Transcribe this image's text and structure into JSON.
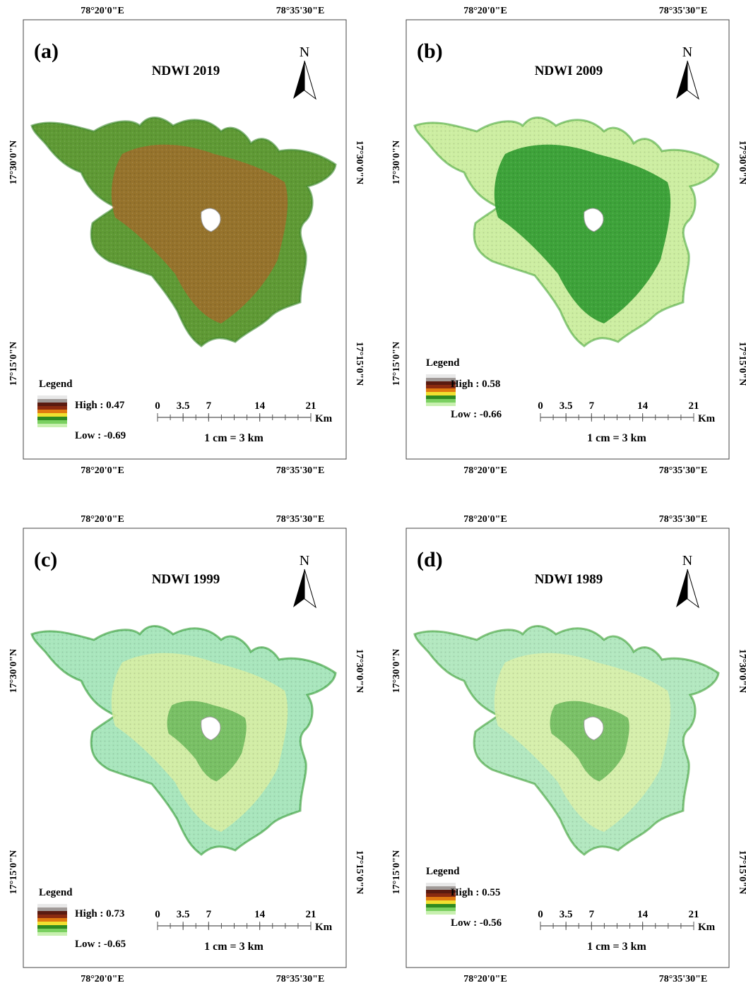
{
  "coordinates": {
    "longitude": [
      "78°20'0\"E",
      "78°35'30\"E"
    ],
    "latitude": [
      "17°30'0\"N",
      "17°15'0\"N"
    ]
  },
  "panels": [
    {
      "label": "(a)",
      "title": "NDWI 2019",
      "north": "N",
      "legend": {
        "title": "Legend",
        "high": "High : 0.47",
        "low": "Low : -0.69"
      },
      "scale": {
        "ticks": [
          0,
          3.5,
          7,
          14,
          21
        ],
        "unit": "Km",
        "ratio": "1 cm = 3 km"
      }
    },
    {
      "label": "(b)",
      "title": "NDWI 2009",
      "north": "N",
      "legend": {
        "title": "Legend",
        "high": "High : 0.58",
        "low": "Low : -0.66"
      },
      "scale": {
        "ticks": [
          0,
          3.5,
          7,
          14,
          21
        ],
        "unit": "Km",
        "ratio": "1 cm = 3 km"
      }
    },
    {
      "label": "(c)",
      "title": "NDWI 1999",
      "north": "N",
      "legend": {
        "title": "Legend",
        "high": "High : 0.73",
        "low": "Low : -0.65"
      },
      "scale": {
        "ticks": [
          0,
          3.5,
          7,
          14,
          21
        ],
        "unit": "Km",
        "ratio": "1 cm = 3 km"
      }
    },
    {
      "label": "(d)",
      "title": "NDWI 1989",
      "north": "N",
      "legend": {
        "title": "Legend",
        "high": "High : 0.55",
        "low": "Low : -0.56"
      },
      "scale": {
        "ticks": [
          0,
          3.5,
          7,
          14,
          21
        ],
        "unit": "Km",
        "ratio": "1 cm = 3 km"
      }
    }
  ]
}
